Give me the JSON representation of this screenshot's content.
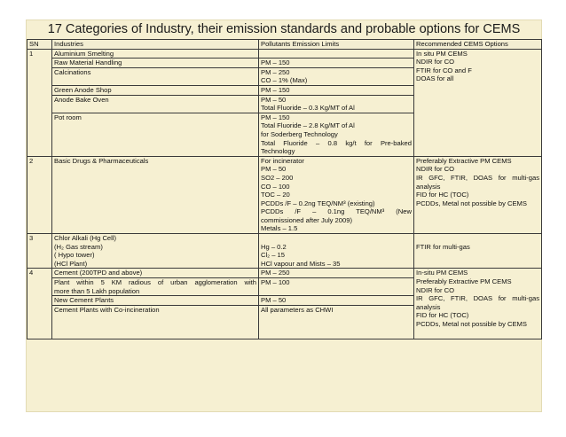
{
  "title": "17 Categories of Industry, their emission standards and probable options for CEMS",
  "headers": {
    "sn": "SN",
    "industries": "Industries",
    "limits": "Pollutants Emission Limits",
    "options": "Recommended CEMS Options"
  },
  "rows": [
    {
      "sn": "1",
      "industry": "Aluminium Smelting",
      "limits": "",
      "options": ""
    },
    {
      "sn": "",
      "industry": "Raw Material Handling",
      "limits": "PM – 150",
      "options": "In situ PM CEMS"
    },
    {
      "sn": "",
      "industry": "Calcinations",
      "limits": "PM – 250",
      "options": "NDIR for CO"
    },
    {
      "sn": "",
      "industry": "",
      "limits": "CO – 1% (Max)",
      "options": "FTIR for CO and F"
    },
    {
      "sn": "",
      "industry": "Green Anode Shop",
      "limits": "PM – 150",
      "options": "DOAS for all"
    },
    {
      "sn": "",
      "industry": "Anode Bake Oven",
      "limits": "PM – 50",
      "options": ""
    },
    {
      "sn": "",
      "industry": "",
      "limits": "Total Fluoride – 0.3 Kg/MT of Al",
      "options": ""
    },
    {
      "sn": "",
      "industry": "Pot room",
      "limits": "PM – 150",
      "options": ""
    },
    {
      "sn": "",
      "industry": "",
      "limits": "Total Fluoride – 2.8 Kg/MT of Al",
      "options": ""
    },
    {
      "sn": "",
      "industry": "",
      "limits": "for Soderberg Technology",
      "options": ""
    },
    {
      "sn": "",
      "industry": "",
      "limits": "Total Fluoride – 0.8 kg/t for Pre-baked",
      "options": ""
    },
    {
      "sn": "",
      "industry": "",
      "limits": "Technology",
      "options": ""
    },
    {
      "sn": "2",
      "industry": "Basic Drugs & Pharmaceuticals",
      "limits": "For incinerator",
      "options": "Preferably Extractive PM CEMS"
    },
    {
      "sn": "",
      "industry": "",
      "limits": "PM – 50",
      "options": "NDIR for CO"
    },
    {
      "sn": "",
      "industry": "",
      "limits": "SO2 – 200",
      "options": "IR GFC, FTIR, DOAS for multi-gas"
    },
    {
      "sn": "",
      "industry": "",
      "limits": "CO – 100",
      "options": "analysis"
    },
    {
      "sn": "",
      "industry": "",
      "limits": "TOC – 20",
      "options": "FID for HC (TOC)"
    },
    {
      "sn": "",
      "industry": "",
      "limits": "PCDDs /F – 0.2ng TEQ/NM³ (existing)",
      "options": "PCDDs, Metal not possible by CEMS"
    },
    {
      "sn": "",
      "industry": "",
      "limits": "PCDDs /F – 0.1ng TEQ/NM³ (New",
      "options": ""
    },
    {
      "sn": "",
      "industry": "",
      "limits": "commissioned after July 2009)",
      "options": ""
    },
    {
      "sn": "",
      "industry": "",
      "limits": "Metals – 1.5",
      "options": ""
    },
    {
      "sn": "3",
      "industry": "Chlor Alkali (Hg Cell)",
      "limits": "",
      "options": ""
    },
    {
      "sn": "",
      "industry": "(H₂ Gas stream)",
      "limits": "Hg – 0.2",
      "options": "FTIR for multi-gas"
    },
    {
      "sn": "",
      "industry": "( Hypo tower)",
      "limits": "Cl₂ – 15",
      "options": ""
    },
    {
      "sn": "",
      "industry": "(HCl Plant)",
      "limits": "HCl vapour and Mists – 35",
      "options": ""
    },
    {
      "sn": "4",
      "industry": "Cement (200TPD and above)",
      "limits": "PM – 250",
      "options": "In-situ PM CEMS"
    },
    {
      "sn": "",
      "industry": "Plant within 5 KM radious of urban agglomeration with",
      "limits": "PM – 100",
      "options": "Preferably Extractive PM CEMS"
    },
    {
      "sn": "",
      "industry": "more than 5 Lakh population",
      "limits": "",
      "options": "NDIR for CO"
    },
    {
      "sn": "",
      "industry": "New Cement Plants",
      "limits": "PM – 50",
      "options": "IR GFC, FTIR, DOAS for multi-gas"
    },
    {
      "sn": "",
      "industry": "Cement Plants with Co-incineration",
      "limits": "All parameters as CHWI",
      "options": "analysis"
    },
    {
      "sn": "",
      "industry": "",
      "limits": "",
      "options": "FID for HC (TOC)"
    },
    {
      "sn": "",
      "industry": "",
      "limits": "",
      "options": "PCDDs, Metal not possible by CEMS"
    }
  ]
}
